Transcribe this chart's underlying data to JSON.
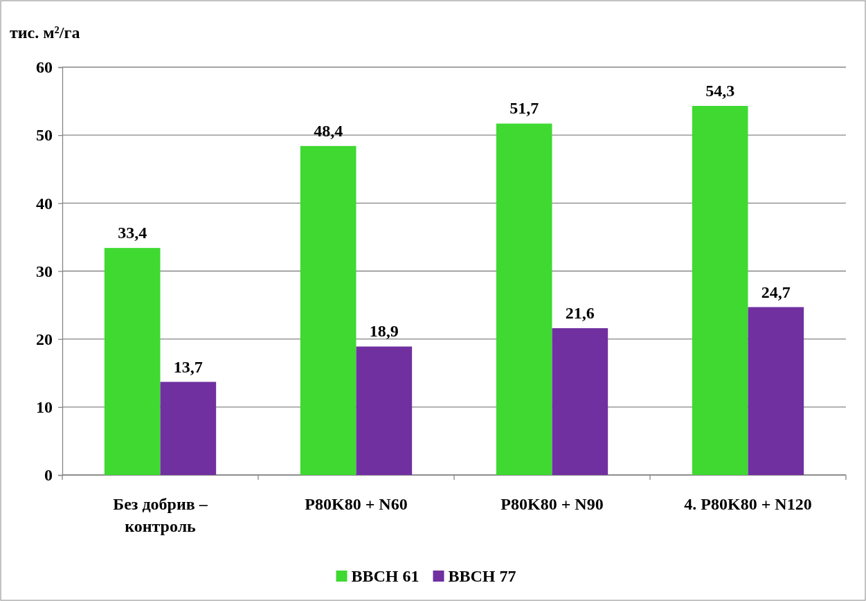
{
  "chart_data": {
    "type": "bar",
    "ylabel": "тис. м²/га",
    "categories": [
      "Без добрив – контроль",
      "P80K80 + N60",
      "P80K80 + N90",
      "4. P80K80 + N120"
    ],
    "series": [
      {
        "name": "BBCH 61",
        "color": "#3fd932",
        "values": [
          33.4,
          48.4,
          51.7,
          54.3
        ],
        "value_labels": [
          "33,4",
          "48,4",
          "51,7",
          "54,3"
        ]
      },
      {
        "name": "BBCH 77",
        "color": "#7030a0",
        "values": [
          13.7,
          18.9,
          21.6,
          24.7
        ],
        "value_labels": [
          "13,7",
          "18,9",
          "21,6",
          "24,7"
        ]
      }
    ],
    "ylim": [
      0,
      60
    ],
    "yticks": [
      0,
      10,
      20,
      30,
      40,
      50,
      60
    ],
    "grid": "y",
    "legend": "bottom"
  }
}
